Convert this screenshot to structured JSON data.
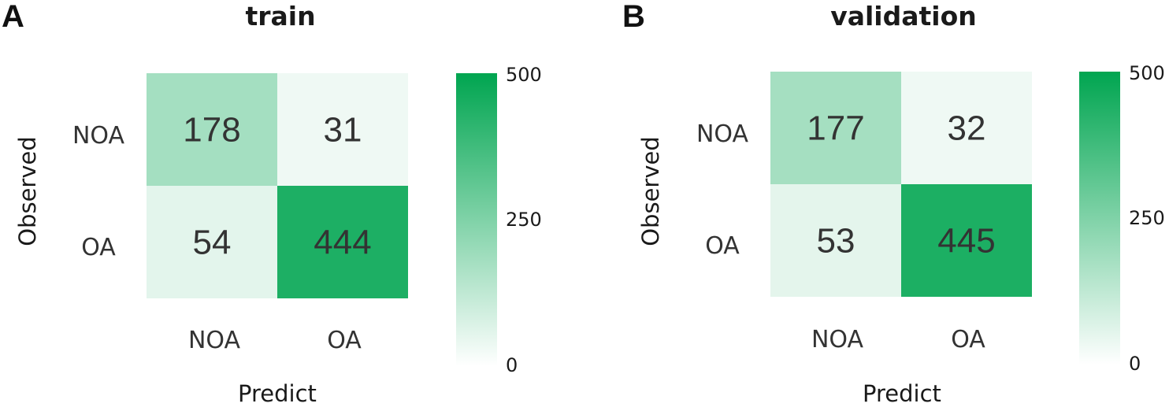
{
  "colors": {
    "low": "#ffffff",
    "high": "#00a550"
  },
  "chart_data": [
    {
      "type": "heatmap",
      "panel": "A",
      "title": "train",
      "xlabel": "Predict",
      "ylabel": "Observed",
      "x_categories": [
        "NOA",
        "OA"
      ],
      "y_categories": [
        "NOA",
        "OA"
      ],
      "values": [
        [
          178,
          31
        ],
        [
          54,
          444
        ]
      ],
      "colorbar": {
        "min": 0,
        "max": 500,
        "ticks": [
          "500",
          "250",
          "0"
        ]
      }
    },
    {
      "type": "heatmap",
      "panel": "B",
      "title": "validation",
      "xlabel": "Predict",
      "ylabel": "Observed",
      "x_categories": [
        "NOA",
        "OA"
      ],
      "y_categories": [
        "NOA",
        "OA"
      ],
      "values": [
        [
          177,
          32
        ],
        [
          53,
          445
        ]
      ],
      "colorbar": {
        "min": 0,
        "max": 500,
        "ticks": [
          "500",
          "250",
          "0"
        ]
      }
    }
  ]
}
